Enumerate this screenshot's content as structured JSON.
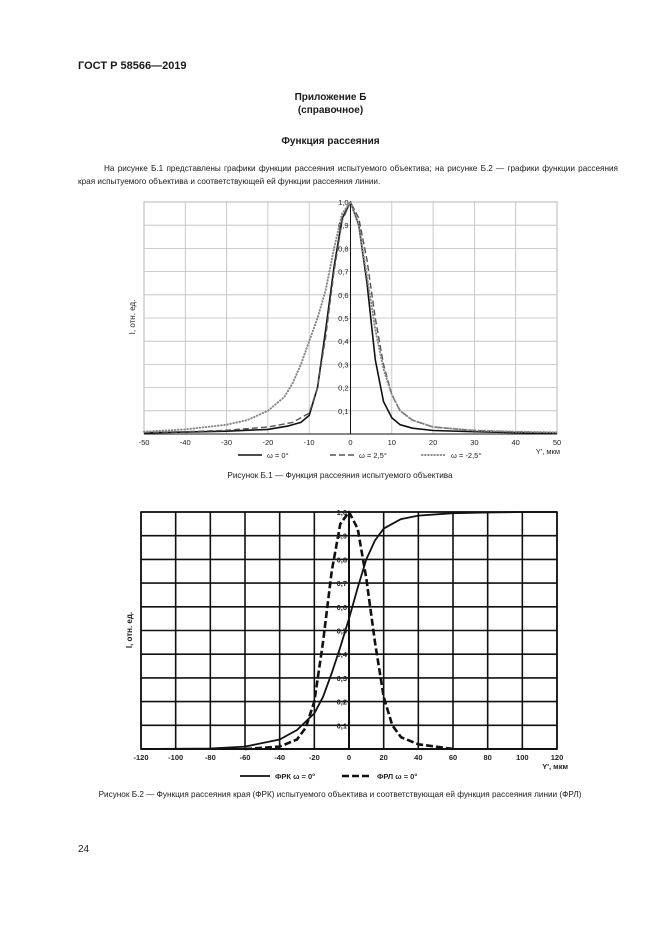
{
  "header": {
    "standard": "ГОСТ Р 58566—2019"
  },
  "appendix": {
    "title": "Приложение Б",
    "status": "(справочное)"
  },
  "section": {
    "title": "Функция рассеяния"
  },
  "paragraph": "На рисунке Б.1 представлены графики функции рассеяния испытуемого объектива; на рисунке Б.2 — графики функции рассеяния края испытуемого объектива и соответствующей ей функции рассеяния линии.",
  "figure1": {
    "caption": "Рисунок Б.1 — Функция рассеяния испытуемого объектива"
  },
  "figure2": {
    "caption": "Рисунок Б.2 — Функция рассеяния края (ФРК) испытуемого объектива и соответствующая ей функция рассеяния линии (ФРЛ)"
  },
  "page_number": "24",
  "chart_data": [
    {
      "type": "line",
      "xlabel": "Y', мкм",
      "ylabel": "I, отн. ед.",
      "xlim": [
        -50,
        50
      ],
      "ylim": [
        0,
        1.0
      ],
      "xticks": [
        "-50",
        "-40",
        "-30",
        "-20",
        "-10",
        "0",
        "10",
        "20",
        "30",
        "40",
        "50"
      ],
      "yticks": [
        "0",
        "0,1",
        "0,2",
        "0,3",
        "0,4",
        "0,5",
        "0,6",
        "0,7",
        "0,8",
        "0,9",
        "1,0"
      ],
      "grid": true,
      "legend_position": "bottom",
      "series": [
        {
          "name": "ω = 0°",
          "style": "solid",
          "x": [
            -50,
            -40,
            -30,
            -20,
            -15,
            -12,
            -10,
            -8,
            -6,
            -4,
            -2,
            0,
            2,
            4,
            6,
            8,
            10,
            12,
            15,
            20,
            30,
            40,
            50
          ],
          "y": [
            0.005,
            0.008,
            0.012,
            0.02,
            0.035,
            0.05,
            0.08,
            0.2,
            0.45,
            0.72,
            0.93,
            1.0,
            0.9,
            0.65,
            0.32,
            0.14,
            0.07,
            0.04,
            0.025,
            0.015,
            0.01,
            0.006,
            0.004
          ]
        },
        {
          "name": "ω = 2,5°",
          "style": "dashed",
          "x": [
            -50,
            -40,
            -30,
            -20,
            -14,
            -10,
            -8,
            -6,
            -4,
            -2,
            0,
            2,
            4,
            6,
            8,
            10,
            12,
            15,
            20,
            30,
            40,
            50
          ],
          "y": [
            0.006,
            0.01,
            0.016,
            0.03,
            0.05,
            0.09,
            0.2,
            0.42,
            0.7,
            0.92,
            1.0,
            0.93,
            0.75,
            0.5,
            0.3,
            0.17,
            0.1,
            0.06,
            0.03,
            0.015,
            0.009,
            0.006
          ]
        },
        {
          "name": "ω = -2,5°",
          "style": "dotted",
          "x": [
            -50,
            -40,
            -30,
            -25,
            -20,
            -16,
            -14,
            -12,
            -10,
            -8,
            -6,
            -4,
            -2,
            0,
            2,
            4,
            6,
            8,
            10,
            12,
            15,
            20,
            30,
            40,
            50
          ],
          "y": [
            0.01,
            0.02,
            0.04,
            0.06,
            0.1,
            0.16,
            0.22,
            0.3,
            0.4,
            0.5,
            0.62,
            0.8,
            0.95,
            1.0,
            0.9,
            0.68,
            0.45,
            0.28,
            0.17,
            0.1,
            0.06,
            0.03,
            0.015,
            0.01,
            0.007
          ]
        }
      ]
    },
    {
      "type": "line",
      "xlabel": "Y', мкм",
      "ylabel": "I, отн. ед.",
      "xlim": [
        -120,
        120
      ],
      "ylim": [
        0,
        1.0
      ],
      "xticks": [
        "-120",
        "-100",
        "-80",
        "-60",
        "-40",
        "-20",
        "0",
        "20",
        "40",
        "60",
        "80",
        "100",
        "120"
      ],
      "yticks": [
        "0",
        "0,1",
        "0,2",
        "0,3",
        "0,4",
        "0,5",
        "0,6",
        "0,7",
        "0,8",
        "0,9",
        "1,0"
      ],
      "grid": true,
      "legend_position": "bottom",
      "series": [
        {
          "name": "ФРК ω = 0°",
          "style": "solid",
          "x": [
            -120,
            -80,
            -60,
            -40,
            -30,
            -20,
            -15,
            -10,
            -5,
            0,
            5,
            10,
            15,
            20,
            30,
            40,
            60,
            80,
            100,
            120
          ],
          "y": [
            0.0,
            0.002,
            0.01,
            0.04,
            0.08,
            0.15,
            0.22,
            0.32,
            0.43,
            0.55,
            0.68,
            0.8,
            0.88,
            0.93,
            0.97,
            0.985,
            0.995,
            0.998,
            1.0,
            1.0
          ]
        },
        {
          "name": "ФРЛ ω = 0°",
          "style": "dashed",
          "x": [
            -60,
            -40,
            -30,
            -25,
            -20,
            -15,
            -10,
            -5,
            0,
            5,
            10,
            15,
            20,
            25,
            30,
            40,
            50,
            60
          ],
          "y": [
            0.0,
            0.01,
            0.04,
            0.09,
            0.2,
            0.45,
            0.75,
            0.95,
            1.0,
            0.93,
            0.72,
            0.45,
            0.22,
            0.1,
            0.05,
            0.02,
            0.01,
            0.0
          ]
        }
      ]
    }
  ]
}
